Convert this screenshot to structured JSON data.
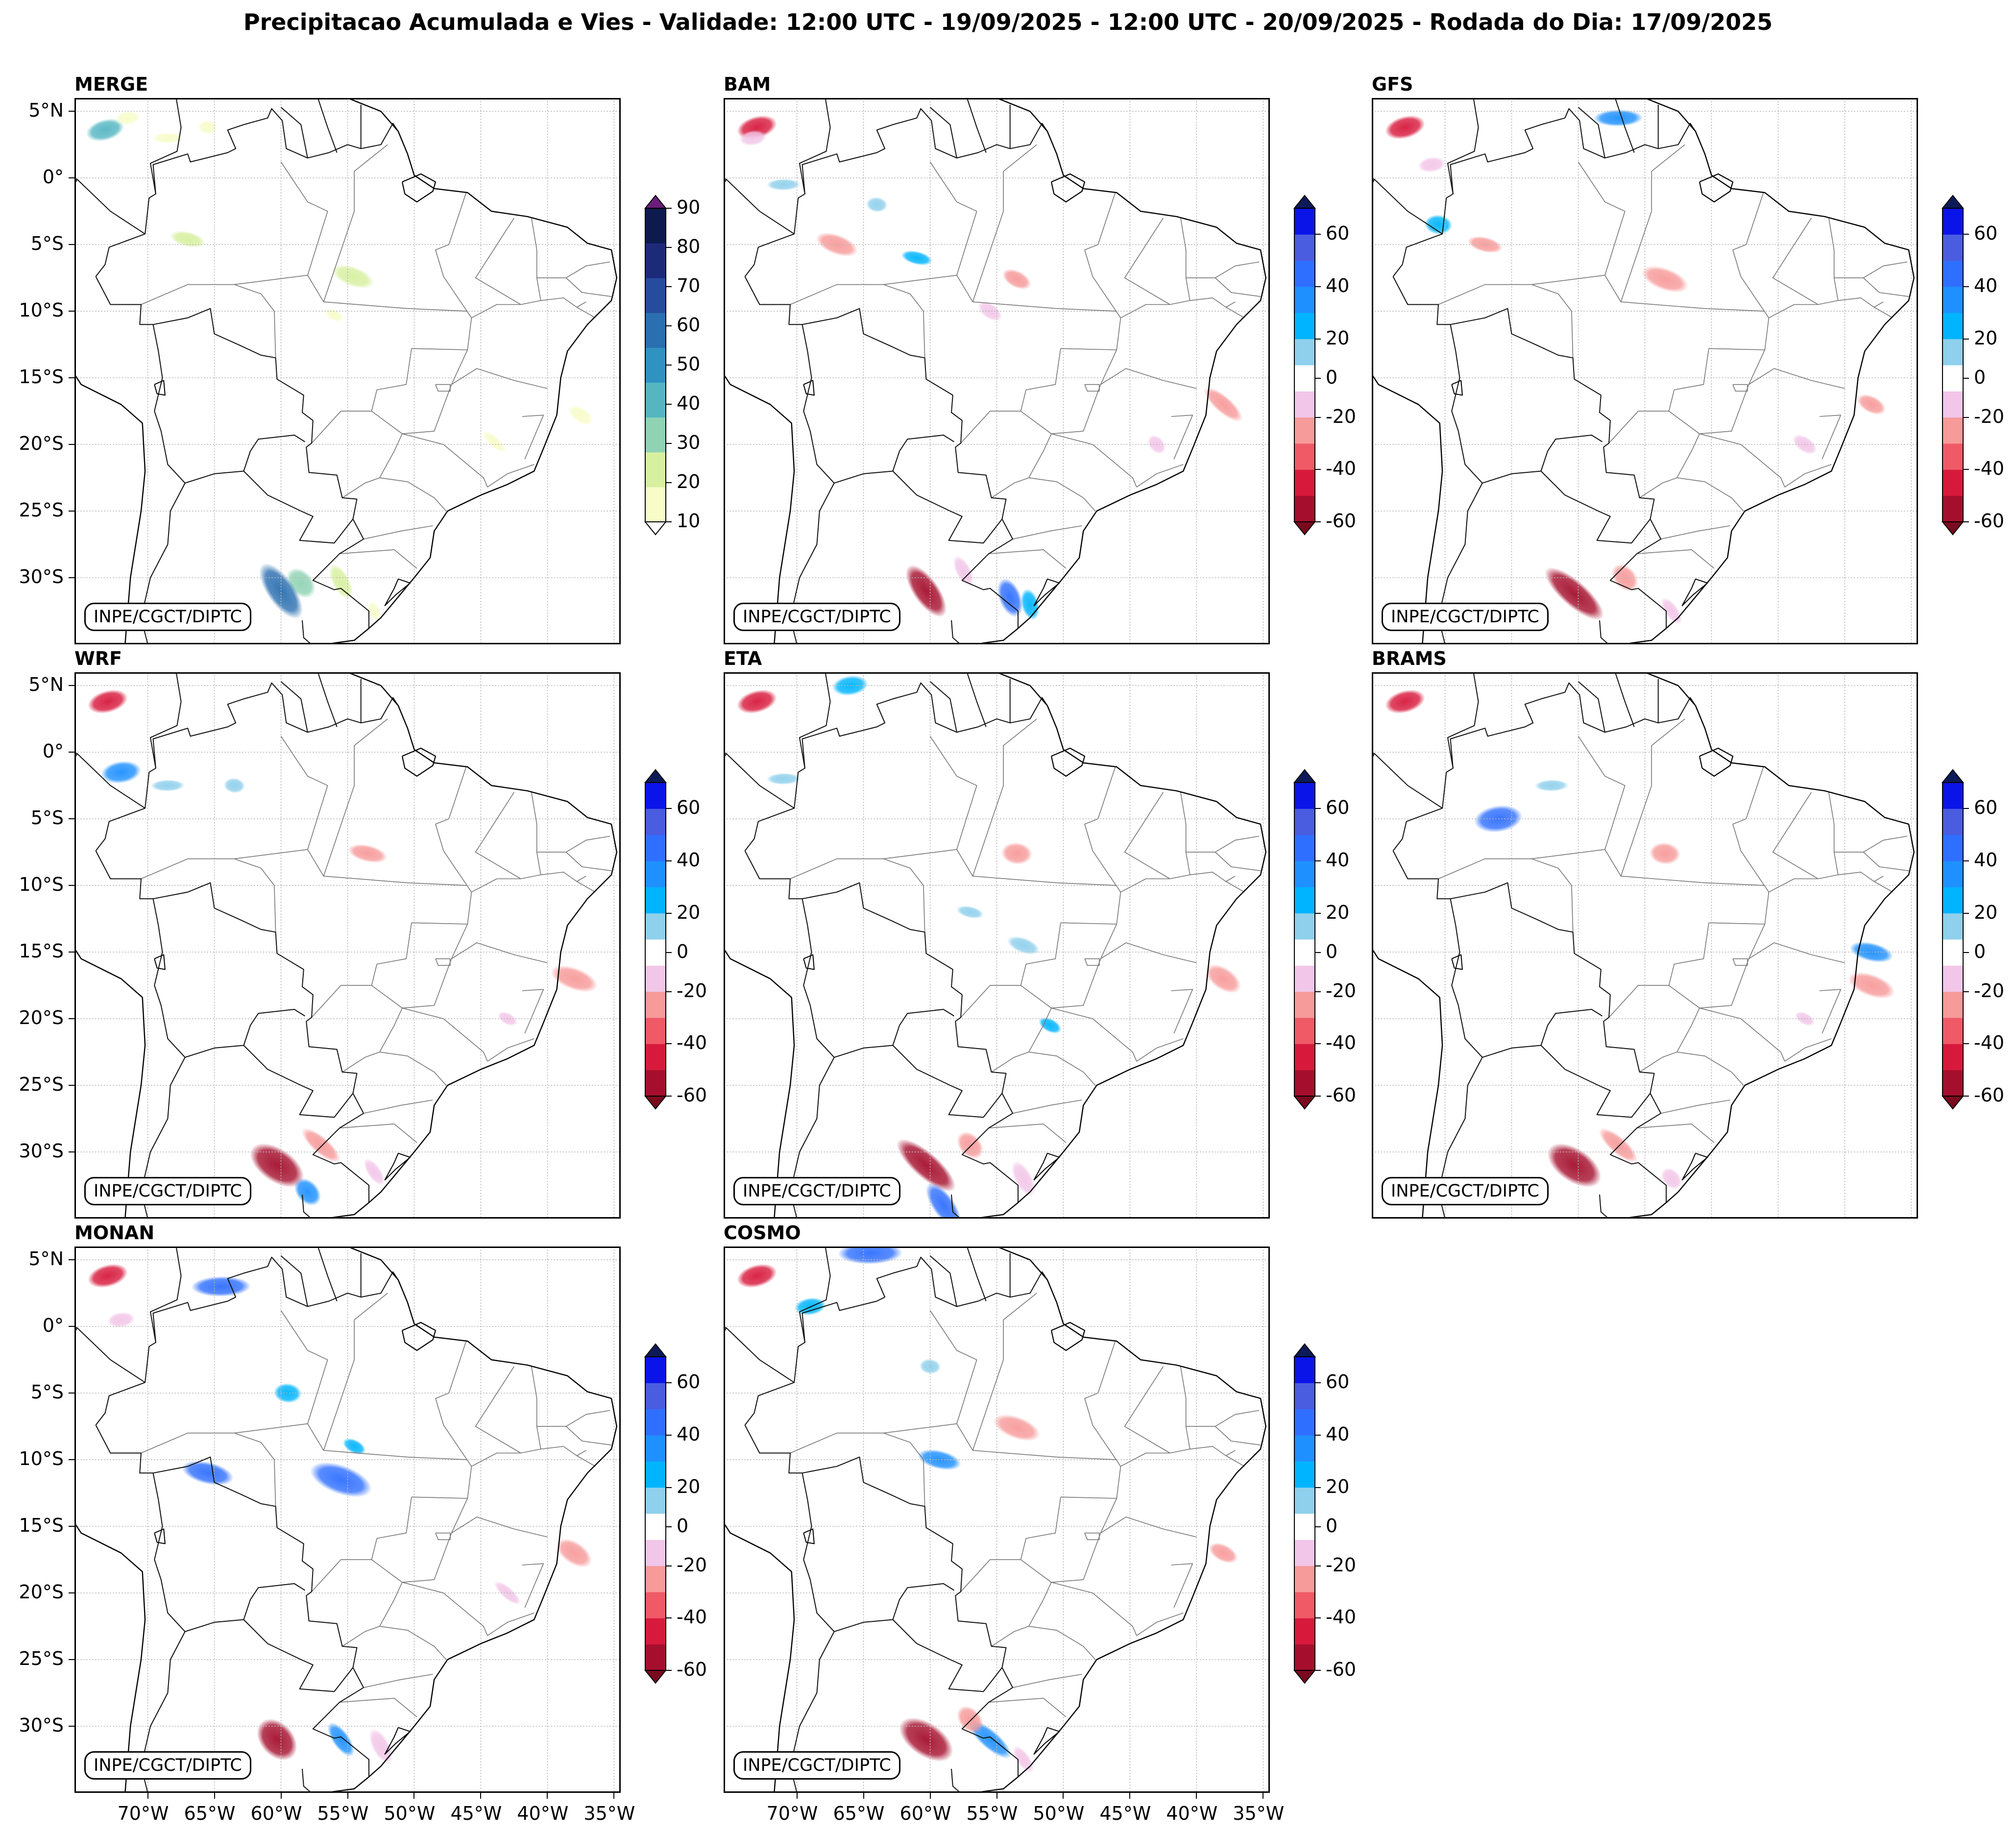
{
  "title": "Precipitacao Acumulada e Vies - Validade: 12:00 UTC - 19/09/2025 - 12:00 UTC - 20/09/2025 - Rodada do Dia: 17/09/2025",
  "stamp": "INPE/CGCT/DIPTC",
  "panels": [
    {
      "name": "MERGE",
      "type": "precip"
    },
    {
      "name": "BAM",
      "type": "bias"
    },
    {
      "name": "GFS",
      "type": "bias"
    },
    {
      "name": "WRF",
      "type": "bias"
    },
    {
      "name": "ETA",
      "type": "bias"
    },
    {
      "name": "BRAMS",
      "type": "bias"
    },
    {
      "name": "MONAN",
      "type": "bias"
    },
    {
      "name": "COSMO",
      "type": "bias"
    }
  ],
  "lat_labels": [
    "5°N",
    "0°",
    "5°S",
    "10°S",
    "15°S",
    "20°S",
    "25°S",
    "30°S"
  ],
  "lon_labels": [
    "70°W",
    "65°W",
    "60°W",
    "55°W",
    "50°W",
    "45°W",
    "40°W",
    "35°W"
  ],
  "precip_scale": {
    "ticks": [
      "90",
      "80",
      "70",
      "60",
      "50",
      "40",
      "30",
      "20",
      "10"
    ],
    "levels": [
      10,
      20,
      30,
      40,
      50,
      60,
      70,
      80,
      90
    ],
    "colors": [
      "#f7fcc8",
      "#d7f0a0",
      "#8fd3b4",
      "#55b6c2",
      "#2f92c0",
      "#2a6fb0",
      "#264c9e",
      "#1d2a7a",
      "#0c1a4d"
    ],
    "over_color": "#6a1d7a",
    "under_color": "#ffffff"
  },
  "bias_scale": {
    "ticks": [
      "60",
      "40",
      "20",
      "0",
      "-20",
      "-40",
      "-60"
    ],
    "levels": [
      -60,
      -50,
      -40,
      -30,
      -20,
      -10,
      10,
      20,
      30,
      40,
      50,
      60
    ],
    "colors": [
      "#a50f2d",
      "#d7193c",
      "#ef5a66",
      "#f79a9a",
      "#f2c6e8",
      "#ffffff",
      "#8fd0ec",
      "#00b4ff",
      "#1e90ff",
      "#2f6fff",
      "#4a5ce0",
      "#0a14e8"
    ],
    "over_color": "#0c1a5a",
    "under_color": "#7a0a1e"
  },
  "fields": {
    "MERGE": [
      {
        "lon": -73.2,
        "lat": 3.6,
        "value": 42
      },
      {
        "lon": -71.5,
        "lat": 4.5,
        "value": 12
      },
      {
        "lon": -68.5,
        "lat": 3.0,
        "value": 12
      },
      {
        "lon": -65.5,
        "lat": 3.8,
        "value": 12
      },
      {
        "lon": -67.0,
        "lat": -4.6,
        "value": 25
      },
      {
        "lon": -54.6,
        "lat": -7.4,
        "value": 25
      },
      {
        "lon": -56.0,
        "lat": -10.3,
        "value": 12
      },
      {
        "lon": -37.5,
        "lat": -17.8,
        "value": 15
      },
      {
        "lon": -44.0,
        "lat": -19.8,
        "value": 12
      },
      {
        "lon": -58.5,
        "lat": -30.4,
        "value": 35
      },
      {
        "lon": -60.0,
        "lat": -31.0,
        "value": 65
      },
      {
        "lon": -55.5,
        "lat": -30.3,
        "value": 20
      },
      {
        "lon": -53.0,
        "lat": -32.5,
        "value": 14
      }
    ],
    "BAM": [
      {
        "lon": -73.0,
        "lat": 3.8,
        "value": -45
      },
      {
        "lon": -73.3,
        "lat": 3.0,
        "value": -15
      },
      {
        "lon": -71.0,
        "lat": -0.5,
        "value": 15
      },
      {
        "lon": -64.0,
        "lat": -2.0,
        "value": 15
      },
      {
        "lon": -61.0,
        "lat": -6.0,
        "value": 20
      },
      {
        "lon": -67.0,
        "lat": -5.0,
        "value": -25
      },
      {
        "lon": -53.5,
        "lat": -7.6,
        "value": -30
      },
      {
        "lon": -55.5,
        "lat": -10.0,
        "value": -15
      },
      {
        "lon": -38.0,
        "lat": -17.0,
        "value": -30
      },
      {
        "lon": -43.0,
        "lat": -20.0,
        "value": -15
      },
      {
        "lon": -60.3,
        "lat": -31.0,
        "value": -55
      },
      {
        "lon": -57.5,
        "lat": -29.5,
        "value": -15
      },
      {
        "lon": -54.0,
        "lat": -31.5,
        "value": 45
      },
      {
        "lon": -52.5,
        "lat": -32.0,
        "value": 20
      }
    ],
    "GFS": [
      {
        "lon": -73.0,
        "lat": 3.8,
        "value": -45
      },
      {
        "lon": -71.0,
        "lat": 1.0,
        "value": -15
      },
      {
        "lon": -57.0,
        "lat": 4.5,
        "value": 30
      },
      {
        "lon": -70.5,
        "lat": -3.5,
        "value": 25
      },
      {
        "lon": -67.0,
        "lat": -5.0,
        "value": -25
      },
      {
        "lon": -53.5,
        "lat": -7.6,
        "value": -30
      },
      {
        "lon": -38.0,
        "lat": -17.0,
        "value": -30
      },
      {
        "lon": -43.0,
        "lat": -20.0,
        "value": -15
      },
      {
        "lon": -60.3,
        "lat": -31.2,
        "value": -55
      },
      {
        "lon": -56.5,
        "lat": -30.0,
        "value": -30
      },
      {
        "lon": -53.0,
        "lat": -32.5,
        "value": -20
      }
    ],
    "WRF": [
      {
        "lon": -73.0,
        "lat": 3.8,
        "value": -45
      },
      {
        "lon": -72.0,
        "lat": -1.5,
        "value": 30
      },
      {
        "lon": -68.5,
        "lat": -2.5,
        "value": 15
      },
      {
        "lon": -63.5,
        "lat": -2.5,
        "value": 15
      },
      {
        "lon": -53.5,
        "lat": -7.6,
        "value": -30
      },
      {
        "lon": -38.0,
        "lat": -17.0,
        "value": -30
      },
      {
        "lon": -43.0,
        "lat": -20.0,
        "value": -15
      },
      {
        "lon": -60.3,
        "lat": -31.0,
        "value": -55
      },
      {
        "lon": -57.0,
        "lat": -29.5,
        "value": -30
      },
      {
        "lon": -58.0,
        "lat": -33.0,
        "value": 30
      },
      {
        "lon": -53.0,
        "lat": -31.5,
        "value": -20
      }
    ],
    "ETA": [
      {
        "lon": -73.0,
        "lat": 3.8,
        "value": -45
      },
      {
        "lon": -66.0,
        "lat": 5.0,
        "value": 25
      },
      {
        "lon": -71.0,
        "lat": -2.0,
        "value": 15
      },
      {
        "lon": -53.5,
        "lat": -7.6,
        "value": -30
      },
      {
        "lon": -57.0,
        "lat": -12.0,
        "value": 15
      },
      {
        "lon": -53.0,
        "lat": -14.5,
        "value": 15
      },
      {
        "lon": -51.0,
        "lat": -20.5,
        "value": 20
      },
      {
        "lon": -38.0,
        "lat": -17.0,
        "value": -30
      },
      {
        "lon": -60.3,
        "lat": -31.0,
        "value": -55
      },
      {
        "lon": -57.0,
        "lat": -29.5,
        "value": -30
      },
      {
        "lon": -59.0,
        "lat": -34.0,
        "value": 45
      },
      {
        "lon": -53.0,
        "lat": -32.0,
        "value": -20
      }
    ],
    "BRAMS": [
      {
        "lon": -73.0,
        "lat": 3.8,
        "value": -45
      },
      {
        "lon": -66.0,
        "lat": -5.0,
        "value": 40
      },
      {
        "lon": -62.0,
        "lat": -2.5,
        "value": 15
      },
      {
        "lon": -53.5,
        "lat": -7.6,
        "value": -30
      },
      {
        "lon": -38.0,
        "lat": -15.0,
        "value": 35
      },
      {
        "lon": -38.0,
        "lat": -17.5,
        "value": -30
      },
      {
        "lon": -43.0,
        "lat": -20.0,
        "value": -15
      },
      {
        "lon": -60.3,
        "lat": -31.0,
        "value": -55
      },
      {
        "lon": -57.0,
        "lat": -29.5,
        "value": -30
      },
      {
        "lon": -53.0,
        "lat": -32.0,
        "value": -20
      }
    ],
    "MONAN": [
      {
        "lon": -73.0,
        "lat": 3.8,
        "value": -45
      },
      {
        "lon": -72.0,
        "lat": 0.5,
        "value": -15
      },
      {
        "lon": -64.5,
        "lat": 3.0,
        "value": 40
      },
      {
        "lon": -59.5,
        "lat": -5.0,
        "value": 25
      },
      {
        "lon": -65.5,
        "lat": -11.0,
        "value": 45
      },
      {
        "lon": -55.5,
        "lat": -11.5,
        "value": 45
      },
      {
        "lon": -54.5,
        "lat": -9.0,
        "value": 20
      },
      {
        "lon": -38.0,
        "lat": -17.0,
        "value": -30
      },
      {
        "lon": -43.0,
        "lat": -20.0,
        "value": -15
      },
      {
        "lon": -60.3,
        "lat": -31.0,
        "value": -55
      },
      {
        "lon": -55.5,
        "lat": -31.0,
        "value": 30
      },
      {
        "lon": -52.5,
        "lat": -31.5,
        "value": -20
      }
    ],
    "COSMO": [
      {
        "lon": -73.0,
        "lat": 3.8,
        "value": -45
      },
      {
        "lon": -69.0,
        "lat": 1.5,
        "value": 20
      },
      {
        "lon": -64.5,
        "lat": 5.5,
        "value": 45
      },
      {
        "lon": -60.0,
        "lat": -3.0,
        "value": 15
      },
      {
        "lon": -59.3,
        "lat": -10.0,
        "value": 35
      },
      {
        "lon": -53.5,
        "lat": -7.6,
        "value": -30
      },
      {
        "lon": -38.0,
        "lat": -17.0,
        "value": -30
      },
      {
        "lon": -60.3,
        "lat": -31.0,
        "value": -55
      },
      {
        "lon": -55.5,
        "lat": -31.0,
        "value": 35
      },
      {
        "lon": -57.0,
        "lat": -29.5,
        "value": -30
      },
      {
        "lon": -53.0,
        "lat": -32.5,
        "value": -20
      }
    ]
  }
}
